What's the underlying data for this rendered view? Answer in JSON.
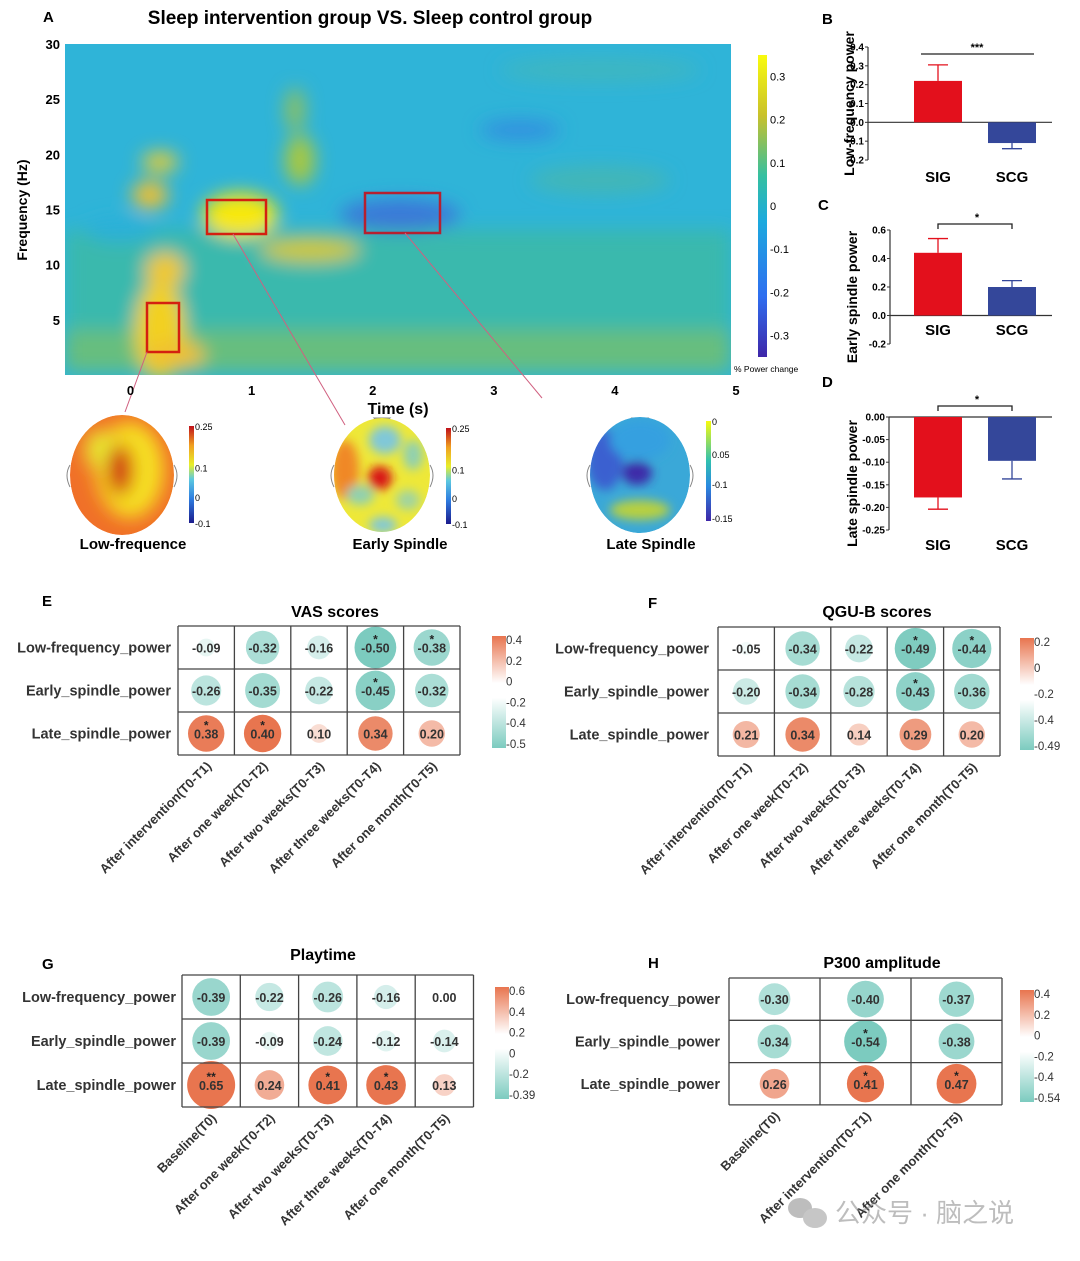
{
  "chart_data": [
    {
      "panel": "A",
      "type": "heatmap",
      "title": "Sleep intervention group VS. Sleep control group",
      "xlabel": "Time (s)",
      "ylabel": "Frequency (Hz)",
      "x_ticks": [
        "0",
        "1",
        "2",
        "3",
        "4",
        "5"
      ],
      "y_ticks": [
        "5",
        "10",
        "15",
        "20",
        "25",
        "30"
      ],
      "xlim": [
        -0.5,
        5
      ],
      "ylim": [
        0,
        30
      ],
      "colorbar": {
        "label": "% Power change",
        "ticks": [
          "0.3",
          "0.2",
          "0.1",
          "0",
          "-0.1",
          "-0.2",
          "-0.3"
        ],
        "range": [
          -0.35,
          0.35
        ]
      },
      "highlight_boxes": [
        {
          "name": "Low-frequence",
          "time": [
            0.2,
            0.45
          ],
          "freq": [
            2,
            7
          ]
        },
        {
          "name": "Early Spindle",
          "time": [
            0.7,
            1.2
          ],
          "freq": [
            13,
            16
          ]
        },
        {
          "name": "Late Spindle",
          "time": [
            2.0,
            2.6
          ],
          "freq": [
            13,
            16.5
          ]
        }
      ],
      "topomaps": [
        {
          "label": "Low-frequence",
          "colorbar_ticks": [
            "0.25",
            "0.1",
            "0",
            "-0.1"
          ]
        },
        {
          "label": "Early Spindle",
          "colorbar_ticks": [
            "0.25",
            "0.1",
            "0",
            "-0.1"
          ]
        },
        {
          "label": "Late Spindle",
          "colorbar_ticks": [
            "0",
            "0.05",
            "-0.1",
            "-0.15"
          ]
        }
      ]
    },
    {
      "panel": "B",
      "type": "bar",
      "ylabel": "Low-frequency power",
      "categories": [
        "SIG",
        "SCG"
      ],
      "values": [
        0.22,
        -0.11
      ],
      "errors": [
        0.085,
        0.03
      ],
      "ylim": [
        -0.2,
        0.4
      ],
      "y_ticks": [
        "0.4",
        "0.3",
        "0.2",
        "0.1",
        "0.0",
        "-0.1",
        "-0.2"
      ],
      "significance": "***"
    },
    {
      "panel": "C",
      "type": "bar",
      "ylabel": "Early spindle power",
      "categories": [
        "SIG",
        "SCG"
      ],
      "values": [
        0.44,
        0.2
      ],
      "errors": [
        0.1,
        0.045
      ],
      "ylim": [
        -0.2,
        0.6
      ],
      "y_ticks": [
        "0.6",
        "0.4",
        "0.2",
        "0.0",
        "-0.2"
      ],
      "significance": "*"
    },
    {
      "panel": "D",
      "type": "bar",
      "ylabel": "Late spindle power",
      "categories": [
        "SIG",
        "SCG"
      ],
      "values": [
        -0.178,
        -0.097
      ],
      "errors": [
        0.026,
        0.04
      ],
      "ylim": [
        -0.25,
        0.0
      ],
      "y_ticks": [
        "0.00",
        "-0.05",
        "-0.10",
        "-0.15",
        "-0.20",
        "-0.25"
      ],
      "significance": "*"
    },
    {
      "panel": "E",
      "type": "table",
      "title": "VAS scores",
      "rows": [
        "Low-frequency_power",
        "Early_spindle_power",
        "Late_spindle_power"
      ],
      "columns": [
        "After intervention(T0-T1)",
        "After one week(T0-T2)",
        "After two weeks(T0-T3)",
        "After three weeks(T0-T4)",
        "After one month(T0-T5)"
      ],
      "values": [
        [
          -0.09,
          -0.32,
          -0.16,
          -0.5,
          -0.38
        ],
        [
          -0.26,
          -0.35,
          -0.22,
          -0.45,
          -0.32
        ],
        [
          0.38,
          0.4,
          0.1,
          0.34,
          0.2
        ]
      ],
      "labels": [
        [
          "-0.09",
          "-0.32",
          "-0.16",
          "-0.50",
          "-0.38"
        ],
        [
          "-0.26",
          "-0.35",
          "-0.22",
          "-0.45",
          "-0.32"
        ],
        [
          "0.38",
          "0.40",
          "0.10",
          "0.34",
          "0.20"
        ]
      ],
      "stars": [
        [
          "",
          "",
          "",
          "*",
          "*"
        ],
        [
          "",
          "",
          "",
          "*",
          ""
        ],
        [
          "*",
          "*",
          "",
          "",
          ""
        ]
      ],
      "legend_ticks": [
        "0.4",
        "0.2",
        "0",
        "-0.2",
        "-0.4",
        "-0.5"
      ],
      "range": [
        -0.5,
        0.4
      ]
    },
    {
      "panel": "F",
      "type": "table",
      "title": "QGU-B scores",
      "rows": [
        "Low-frequency_power",
        "Early_spindle_power",
        "Late_spindle_power"
      ],
      "columns": [
        "After intervention(T0-T1)",
        "After one week(T0-T2)",
        "After two weeks(T0-T3)",
        "After three weeks(T0-T4)",
        "After one month(T0-T5)"
      ],
      "values": [
        [
          -0.05,
          -0.34,
          -0.22,
          -0.49,
          -0.44
        ],
        [
          -0.2,
          -0.34,
          -0.28,
          -0.43,
          -0.36
        ],
        [
          0.21,
          0.34,
          0.14,
          0.29,
          0.2
        ]
      ],
      "labels": [
        [
          "-0.05",
          "-0.34",
          "-0.22",
          "-0.49",
          "-0.44"
        ],
        [
          "-0.20",
          "-0.34",
          "-0.28",
          "-0.43",
          "-0.36"
        ],
        [
          "0.21",
          "0.34",
          "0.14",
          "0.29",
          "0.20"
        ]
      ],
      "stars": [
        [
          "",
          "",
          "",
          "*",
          "*"
        ],
        [
          "",
          "",
          "",
          "*",
          ""
        ],
        [
          "",
          "",
          "",
          "",
          ""
        ]
      ],
      "legend_ticks": [
        "0.2",
        "0",
        "-0.2",
        "-0.4",
        "-0.49"
      ],
      "range": [
        -0.49,
        0.34
      ]
    },
    {
      "panel": "G",
      "type": "table",
      "title": "Playtime",
      "rows": [
        "Low-frequency_power",
        "Early_spindle_power",
        "Late_spindle_power"
      ],
      "columns": [
        "Baseline(T0)",
        "After one week(T0-T2)",
        "After two weeks(T0-T3)",
        "After three weeks(T0-T4)",
        "After one month(T0-T5)"
      ],
      "values": [
        [
          -0.39,
          -0.22,
          -0.26,
          -0.16,
          0.0
        ],
        [
          -0.39,
          -0.09,
          -0.24,
          -0.12,
          -0.14
        ],
        [
          0.65,
          0.24,
          0.41,
          0.43,
          0.13
        ]
      ],
      "labels": [
        [
          "-0.39",
          "-0.22",
          "-0.26",
          "-0.16",
          "0.00"
        ],
        [
          "-0.39",
          "-0.09",
          "-0.24",
          "-0.12",
          "-0.14"
        ],
        [
          "0.65",
          "0.24",
          "0.41",
          "0.43",
          "0.13"
        ]
      ],
      "stars": [
        [
          "",
          "",
          "",
          "",
          ""
        ],
        [
          "",
          "",
          "",
          "",
          ""
        ],
        [
          "**",
          "",
          "*",
          "*",
          ""
        ]
      ],
      "legend_ticks": [
        "0.6",
        "0.4",
        "0.2",
        "0",
        "-0.2",
        "-0.39"
      ],
      "range": [
        -0.39,
        0.65
      ]
    },
    {
      "panel": "H",
      "type": "table",
      "title": "P300 amplitude",
      "rows": [
        "Low-frequency_power",
        "Early_spindle_power",
        "Late_spindle_power"
      ],
      "columns": [
        "Baseline(T0)",
        "After intervention(T0-T1)",
        "After one month(T0-T5)"
      ],
      "values": [
        [
          -0.3,
          -0.4,
          -0.37
        ],
        [
          -0.34,
          -0.54,
          -0.38
        ],
        [
          0.26,
          0.41,
          0.47
        ]
      ],
      "labels": [
        [
          "-0.30",
          "-0.40",
          "-0.37"
        ],
        [
          "-0.34",
          "-0.54",
          "-0.38"
        ],
        [
          "0.26",
          "0.41",
          "0.47"
        ]
      ],
      "stars": [
        [
          "",
          "",
          ""
        ],
        [
          "",
          "*",
          ""
        ],
        [
          "",
          "*",
          "*"
        ]
      ],
      "legend_ticks": [
        "0.4",
        "0.2",
        "0",
        "-0.2",
        "-0.4",
        "-0.54"
      ],
      "range": [
        -0.54,
        0.47
      ]
    }
  ],
  "panel_letters": {
    "A": "A",
    "B": "B",
    "C": "C",
    "D": "D",
    "E": "E",
    "F": "F",
    "G": "G",
    "H": "H"
  },
  "colors": {
    "sig": "#e3101c",
    "scg": "#34479a",
    "pos": "#e8754f",
    "neg": "#7ccbbf"
  },
  "watermark": "公众号 · 脑之说"
}
